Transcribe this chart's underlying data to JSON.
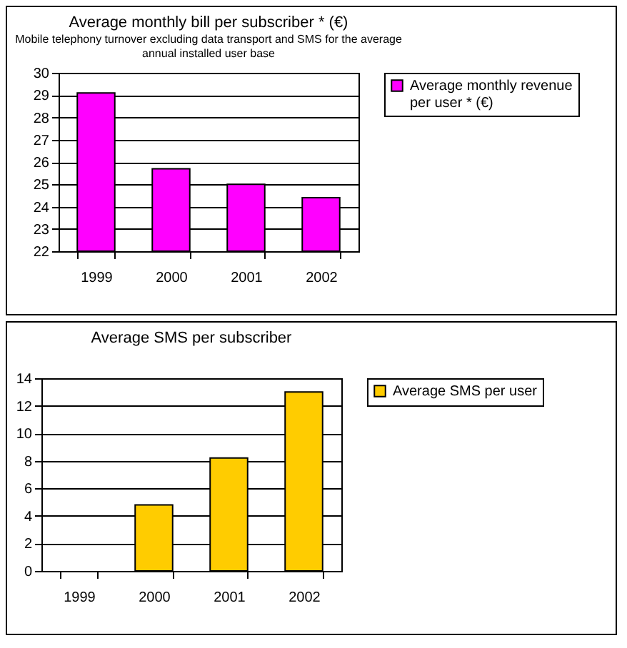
{
  "chart_data": [
    {
      "type": "bar",
      "title": "Average monthly bill per subscriber * (€)",
      "subtitle": "Mobile telephony turnover excluding data transport and SMS for the average annual installed user base",
      "categories": [
        "1999",
        "2000",
        "2001",
        "2002"
      ],
      "series": [
        {
          "name": "Average monthly revenue per user * (€)",
          "color": "#ff00ff",
          "values": [
            29.1,
            25.7,
            25.0,
            24.4
          ]
        }
      ],
      "ylim": [
        22,
        30
      ],
      "yticks": [
        22,
        23,
        24,
        25,
        26,
        27,
        28,
        29,
        30
      ],
      "grid": "y",
      "legend": "right"
    },
    {
      "type": "bar",
      "title": "Average SMS per subscriber",
      "categories": [
        "1999",
        "2000",
        "2001",
        "2002"
      ],
      "series": [
        {
          "name": "Average SMS per user",
          "color": "#ffcc00",
          "values": [
            null,
            4.8,
            8.2,
            13.0
          ]
        }
      ],
      "ylim": [
        0,
        14
      ],
      "yticks": [
        0,
        2,
        4,
        6,
        8,
        10,
        12,
        14
      ],
      "grid": "y",
      "legend": "right"
    }
  ]
}
